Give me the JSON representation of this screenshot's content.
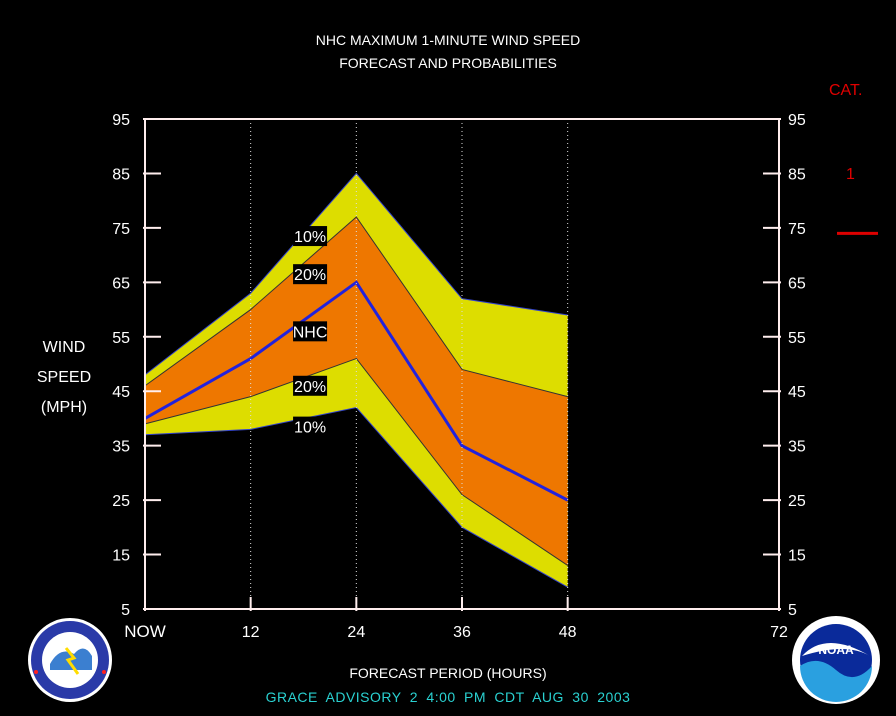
{
  "header": {
    "title": "NHC MAXIMUM 1-MINUTE WIND SPEED",
    "subtitle": "FORECAST AND PROBABILITIES"
  },
  "y_axis_label": {
    "line1": "WIND",
    "line2": "SPEED",
    "line3": "(MPH)"
  },
  "x_axis_label": "FORECAST PERIOD (HOURS)",
  "category": {
    "label": "CAT.",
    "value": "1",
    "color": "#dd0000"
  },
  "footer": "GRACE   ADVISORY  2  4:00  PM  CDT  AUG  30  2003",
  "logos": {
    "left": "noaa-nws-seal-icon",
    "right": "noaa-logo-icon"
  },
  "colors": {
    "band_10": "#dddd00",
    "band_20": "#ee7700",
    "nhc_line": "#2222dd",
    "frame": "#ffeeee"
  },
  "chart_data": {
    "type": "area",
    "x": [
      0,
      12,
      24,
      36,
      48
    ],
    "x_tick_labels": [
      "NOW",
      "12",
      "24",
      "36",
      "48",
      "72"
    ],
    "x_ticks": [
      0,
      12,
      24,
      36,
      48,
      72
    ],
    "xlim": [
      0,
      72
    ],
    "ylim": [
      5,
      95
    ],
    "y_ticks": [
      5,
      15,
      25,
      35,
      45,
      55,
      65,
      75,
      85,
      95
    ],
    "series": [
      {
        "name": "10%",
        "upper": [
          48,
          63,
          85,
          62,
          59
        ],
        "lower": [
          37,
          38,
          42,
          20,
          9
        ]
      },
      {
        "name": "20%",
        "upper": [
          46,
          60,
          77,
          49,
          44
        ],
        "lower": [
          39,
          44,
          51,
          26,
          13
        ]
      },
      {
        "name": "NHC",
        "values": [
          40,
          51,
          65,
          35,
          25
        ]
      }
    ],
    "band_labels": [
      {
        "text": "10%",
        "x": 12.5,
        "y": 73.5
      },
      {
        "text": "20%",
        "x": 12.5,
        "y": 66.5
      },
      {
        "text": "NHC",
        "x": 12.5,
        "y": 56
      },
      {
        "text": "20%",
        "x": 12.5,
        "y": 46
      },
      {
        "text": "10%",
        "x": 12.5,
        "y": 38.5
      }
    ],
    "category_thresholds": [
      74
    ]
  }
}
